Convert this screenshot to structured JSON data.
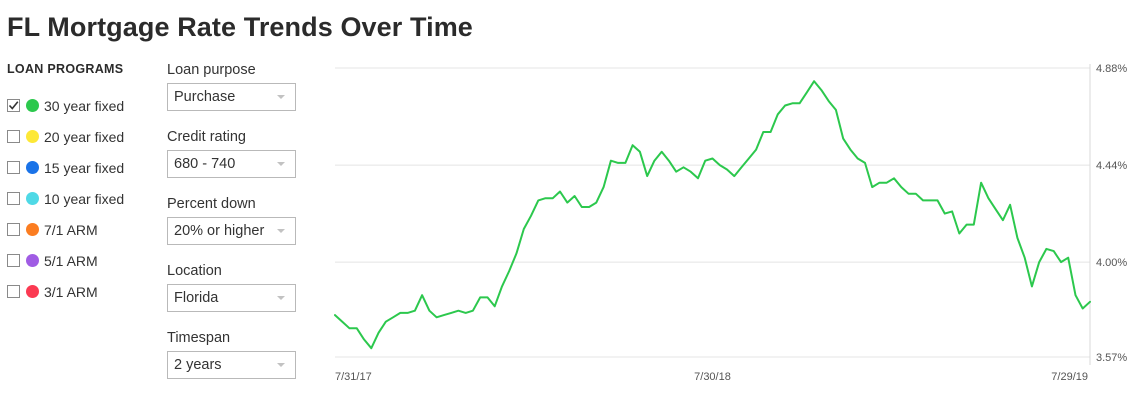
{
  "title": "FL Mortgage Rate Trends Over Time",
  "loan_programs": {
    "heading": "LOAN PROGRAMS",
    "items": [
      {
        "label": "30 year fixed",
        "color": "#2cc84d",
        "checked": true
      },
      {
        "label": "20 year fixed",
        "color": "#fde837",
        "checked": false
      },
      {
        "label": "15 year fixed",
        "color": "#1a73e8",
        "checked": false
      },
      {
        "label": "10 year fixed",
        "color": "#4fd9e6",
        "checked": false
      },
      {
        "label": "7/1 ARM",
        "color": "#fb7d21",
        "checked": false
      },
      {
        "label": "5/1 ARM",
        "color": "#a05ce4",
        "checked": false
      },
      {
        "label": "3/1 ARM",
        "color": "#fb3a52",
        "checked": false
      }
    ]
  },
  "filters": [
    {
      "label": "Loan purpose",
      "value": "Purchase"
    },
    {
      "label": "Credit rating",
      "value": "680 - 740"
    },
    {
      "label": "Percent down",
      "value": "20% or higher"
    },
    {
      "label": "Location",
      "value": "Florida"
    },
    {
      "label": "Timespan",
      "value": "2 years"
    }
  ],
  "chart_data": {
    "type": "line",
    "title": "",
    "xlabel": "",
    "ylabel": "",
    "x_tick_labels": [
      "7/31/17",
      "7/30/18",
      "7/29/19"
    ],
    "y_tick_labels": [
      "4.88%",
      "4.44%",
      "4.00%",
      "3.57%"
    ],
    "y_ticks": [
      4.88,
      4.44,
      4.0,
      3.57
    ],
    "ylim": [
      3.57,
      4.88
    ],
    "xlim_weeks": [
      0,
      104
    ],
    "grid": true,
    "y_axis_position": "right",
    "series": [
      {
        "color": "#2cc84d",
        "x": [
          0,
          1,
          2,
          3,
          4,
          5,
          6,
          7,
          8,
          9,
          10,
          11,
          12,
          13,
          14,
          15,
          16,
          17,
          18,
          19,
          20,
          21,
          22,
          23,
          24,
          25,
          26,
          27,
          28,
          29,
          30,
          31,
          32,
          33,
          34,
          35,
          36,
          37,
          38,
          39,
          40,
          41,
          42,
          43,
          44,
          45,
          46,
          47,
          48,
          49,
          50,
          51,
          52,
          53,
          54,
          55,
          56,
          57,
          58,
          59,
          60,
          61,
          62,
          63,
          64,
          65,
          66,
          67,
          68,
          69,
          70,
          71,
          72,
          73,
          74,
          75,
          76,
          77,
          78,
          79,
          80,
          81,
          82,
          83,
          84,
          85,
          86,
          87,
          88,
          89,
          90,
          91,
          92,
          93,
          94,
          95,
          96,
          97,
          98,
          99,
          100,
          101,
          102,
          103,
          104
        ],
        "values": [
          3.76,
          3.73,
          3.7,
          3.7,
          3.65,
          3.61,
          3.68,
          3.73,
          3.75,
          3.77,
          3.77,
          3.78,
          3.85,
          3.78,
          3.75,
          3.76,
          3.77,
          3.78,
          3.77,
          3.78,
          3.84,
          3.84,
          3.8,
          3.89,
          3.96,
          4.04,
          4.15,
          4.21,
          4.28,
          4.29,
          4.29,
          4.32,
          4.27,
          4.3,
          4.25,
          4.25,
          4.27,
          4.34,
          4.46,
          4.45,
          4.45,
          4.53,
          4.5,
          4.39,
          4.46,
          4.5,
          4.46,
          4.41,
          4.43,
          4.41,
          4.38,
          4.46,
          4.47,
          4.44,
          4.42,
          4.39,
          4.43,
          4.47,
          4.51,
          4.59,
          4.59,
          4.67,
          4.71,
          4.72,
          4.72,
          4.77,
          4.82,
          4.78,
          4.73,
          4.69,
          4.56,
          4.51,
          4.47,
          4.45,
          4.34,
          4.36,
          4.36,
          4.38,
          4.34,
          4.31,
          4.31,
          4.28,
          4.28,
          4.28,
          4.22,
          4.23,
          4.13,
          4.17,
          4.17,
          4.36,
          4.29,
          4.24,
          4.19,
          4.26,
          4.11,
          4.02,
          3.89,
          4.0,
          4.06,
          4.05,
          4.0,
          4.02,
          3.85,
          3.79,
          3.82
        ]
      }
    ]
  }
}
